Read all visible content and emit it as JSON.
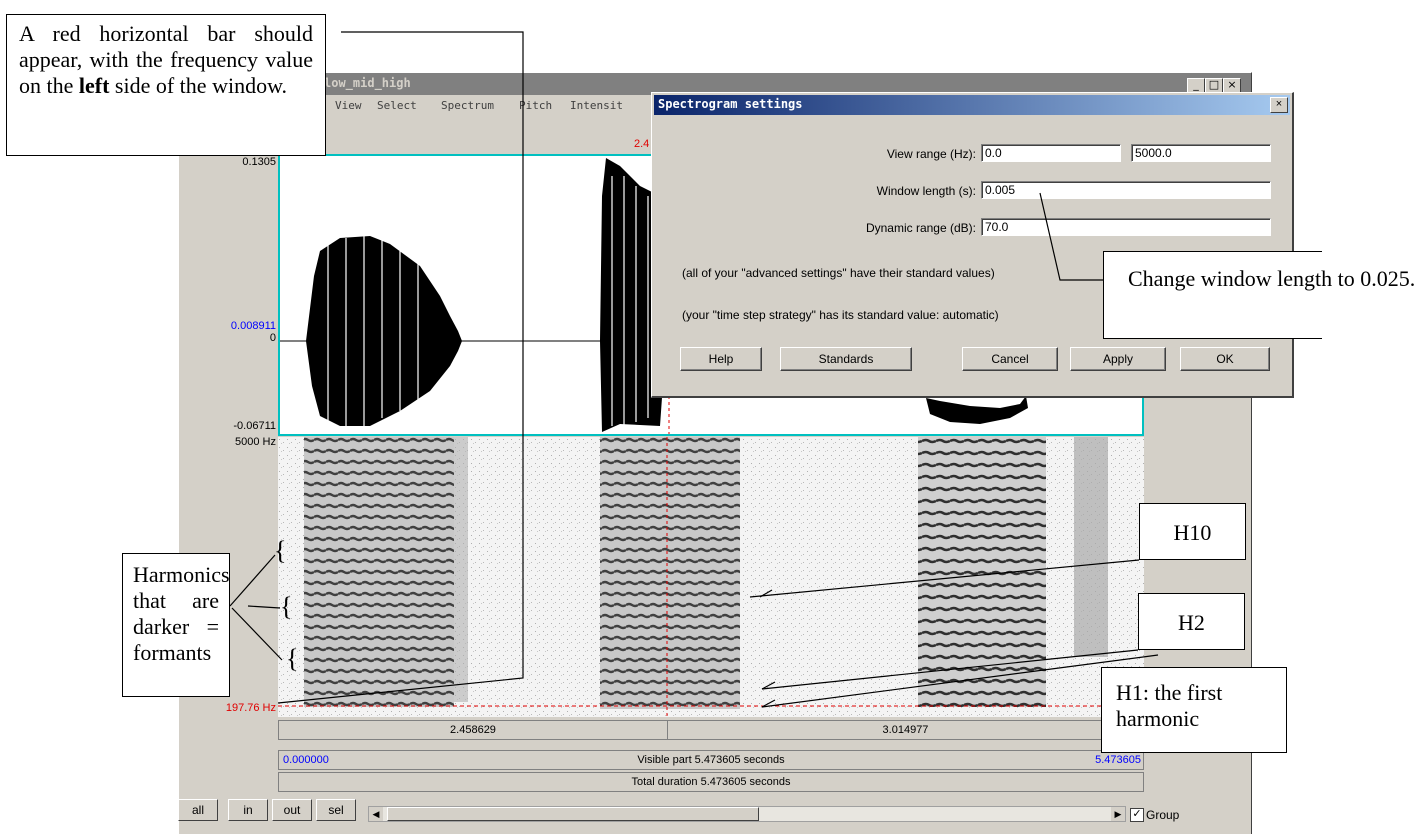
{
  "window": {
    "title": "low_mid_high",
    "menu": [
      "View",
      "Select",
      "Spectrum",
      "Pitch",
      "Intensit"
    ],
    "min_glyph": "_",
    "max_glyph": "□",
    "close_glyph": "×"
  },
  "waveform": {
    "y_top": "0.1305",
    "y_mid": "0.008911",
    "y_zero": "0",
    "y_bottom": "-0.06711",
    "cursor_top_label": "2.4"
  },
  "spectrogram": {
    "y_top": "5000 Hz",
    "y_cursor": "197.76 Hz"
  },
  "time_axis": {
    "label_left": "2.458629",
    "label_right": "3.014977",
    "start": "0.000000",
    "visible": "Visible part 5.473605 seconds",
    "end": "5.473605",
    "total": "Total duration 5.473605 seconds"
  },
  "bottom_bar": {
    "buttons": [
      "all",
      "in",
      "out",
      "sel"
    ],
    "group_label": "Group",
    "group_checked": true
  },
  "dialog": {
    "title": "Spectrogram settings",
    "close_glyph": "×",
    "view_range_label": "View range (Hz):",
    "view_range_from": "0.0",
    "view_range_to": "5000.0",
    "window_length_label": "Window length (s):",
    "window_length_value": "0.005",
    "dynamic_range_label": "Dynamic range (dB):",
    "dynamic_range_value": "70.0",
    "advanced_note": "(all of your \"advanced settings\" have their standard values)",
    "timestep_note": "(your \"time step strategy\" has its standard value: automatic)",
    "buttons": {
      "help": "Help",
      "standards": "Standards",
      "cancel": "Cancel",
      "apply": "Apply",
      "ok": "OK"
    }
  },
  "annotations": {
    "red_bar": {
      "pre": "A red horizontal bar should appear, with the frequency value on the ",
      "bold": "left",
      "post": " side of the window."
    },
    "window_change": "Change window length to 0.025.",
    "harmonics": "Harmonics that are darker = formants",
    "brace": "{",
    "h10": "H10",
    "h2": "H2",
    "h1": "H1: the first harmonic"
  },
  "colors": {
    "cursor_red": "#e00000",
    "cyan_border": "#00c0c0",
    "blue_text": "#0000ff",
    "dialog_title_start": "#0a246a",
    "dialog_title_end": "#a6caf0"
  }
}
